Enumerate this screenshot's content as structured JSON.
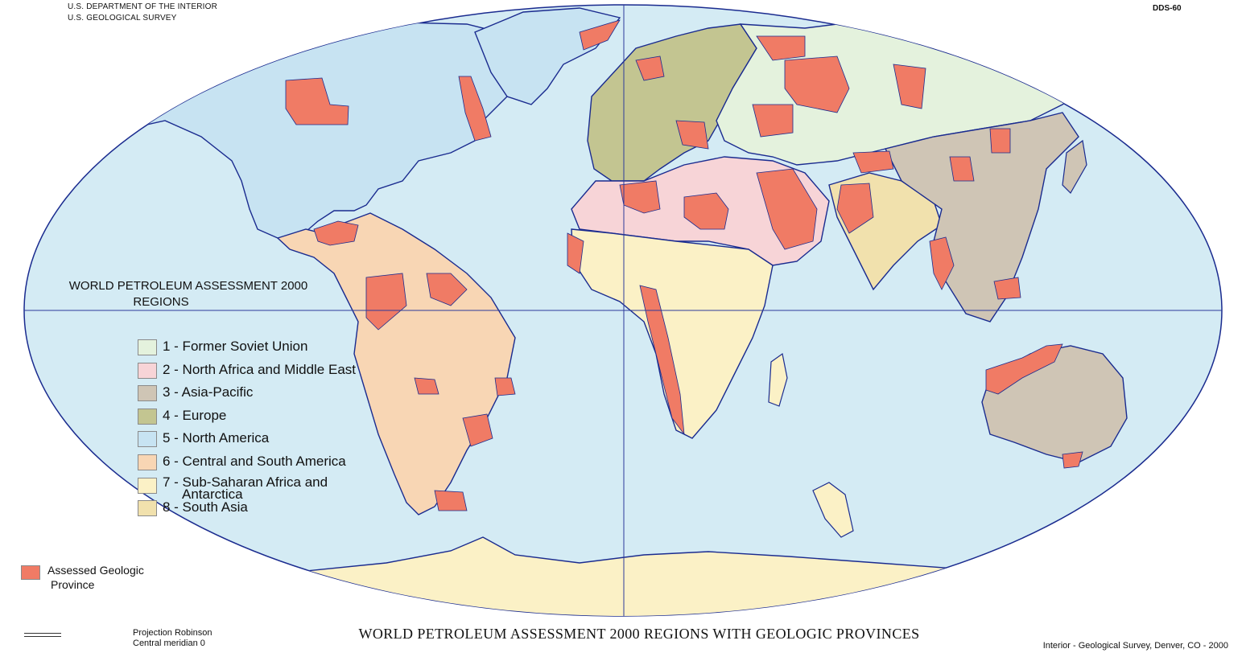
{
  "header": {
    "agency_line1": "U.S. DEPARTMENT OF THE INTERIOR",
    "agency_line2": "U.S. GEOLOGICAL SURVEY",
    "doc_id": "DDS-60"
  },
  "map": {
    "projection": "Robinson",
    "central_meridian": 0,
    "ocean_color": "#d4ebf4",
    "border_color": "#1a2b8f",
    "graticule_color": "#2c3a9a"
  },
  "legend": {
    "title_line1": "WORLD PETROLEUM ASSESSMENT 2000",
    "title_line2": "REGIONS",
    "items": [
      {
        "label": "1 - Former Soviet Union",
        "color": "#e4f2dd"
      },
      {
        "label": "2 - North Africa and Middle East",
        "color": "#f7d4d7"
      },
      {
        "label": "3 - Asia-Pacific",
        "color": "#cfc5b5"
      },
      {
        "label": "4 - Europe",
        "color": "#c3c591"
      },
      {
        "label": "5 - North America",
        "color": "#c7e3f2"
      },
      {
        "label": "6 - Central and South America",
        "color": "#f8d6b4"
      },
      {
        "label_line1": "7 - Sub-Saharan Africa and",
        "label_line2": "Antarctica",
        "color": "#fbf1c6"
      },
      {
        "label": "8 - South Asia",
        "color": "#f1e1ad"
      }
    ],
    "assessed_label_line1": "Assessed Geologic",
    "assessed_label_line2": "Province",
    "assessed_color": "#f07b65"
  },
  "footer": {
    "projection_line1": "Projection Robinson",
    "projection_line2": "Central meridian 0",
    "title": "WORLD PETROLEUM ASSESSMENT 2000 REGIONS WITH GEOLOGIC PROVINCES",
    "credit": "Interior - Geological Survey, Denver, CO - 2000"
  }
}
